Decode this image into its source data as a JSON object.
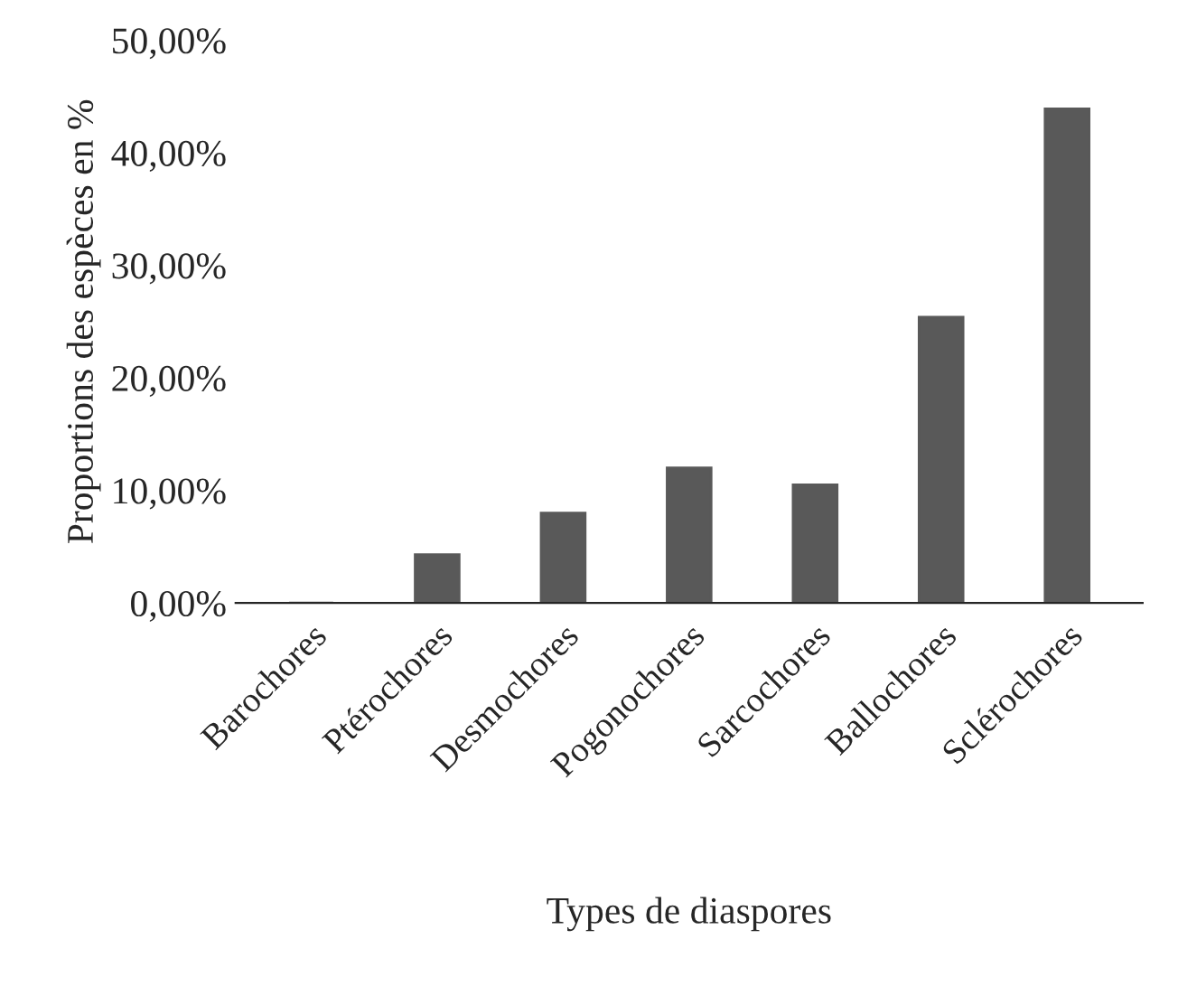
{
  "chart_data": {
    "type": "bar",
    "xlabel": "Types de diaspores",
    "ylabel": "Proportions des espèces en %",
    "categories": [
      "Barochores",
      "Ptérochores",
      "Desmochores",
      "Pogonochores",
      "Sarcochores",
      "Ballochores",
      "Sclérochores"
    ],
    "values": [
      0,
      4.3,
      8.0,
      12.0,
      10.5,
      25.4,
      43.9
    ],
    "color": "#595959",
    "ylim": [
      0,
      50
    ],
    "yticks": [
      {
        "value": 0,
        "label": "0,00%"
      },
      {
        "value": 10,
        "label": "10,00%"
      },
      {
        "value": 20,
        "label": "20,00%"
      },
      {
        "value": 30,
        "label": "30,00%"
      },
      {
        "value": 40,
        "label": "40,00%"
      },
      {
        "value": 50,
        "label": "50,00%"
      }
    ],
    "grid": false
  }
}
